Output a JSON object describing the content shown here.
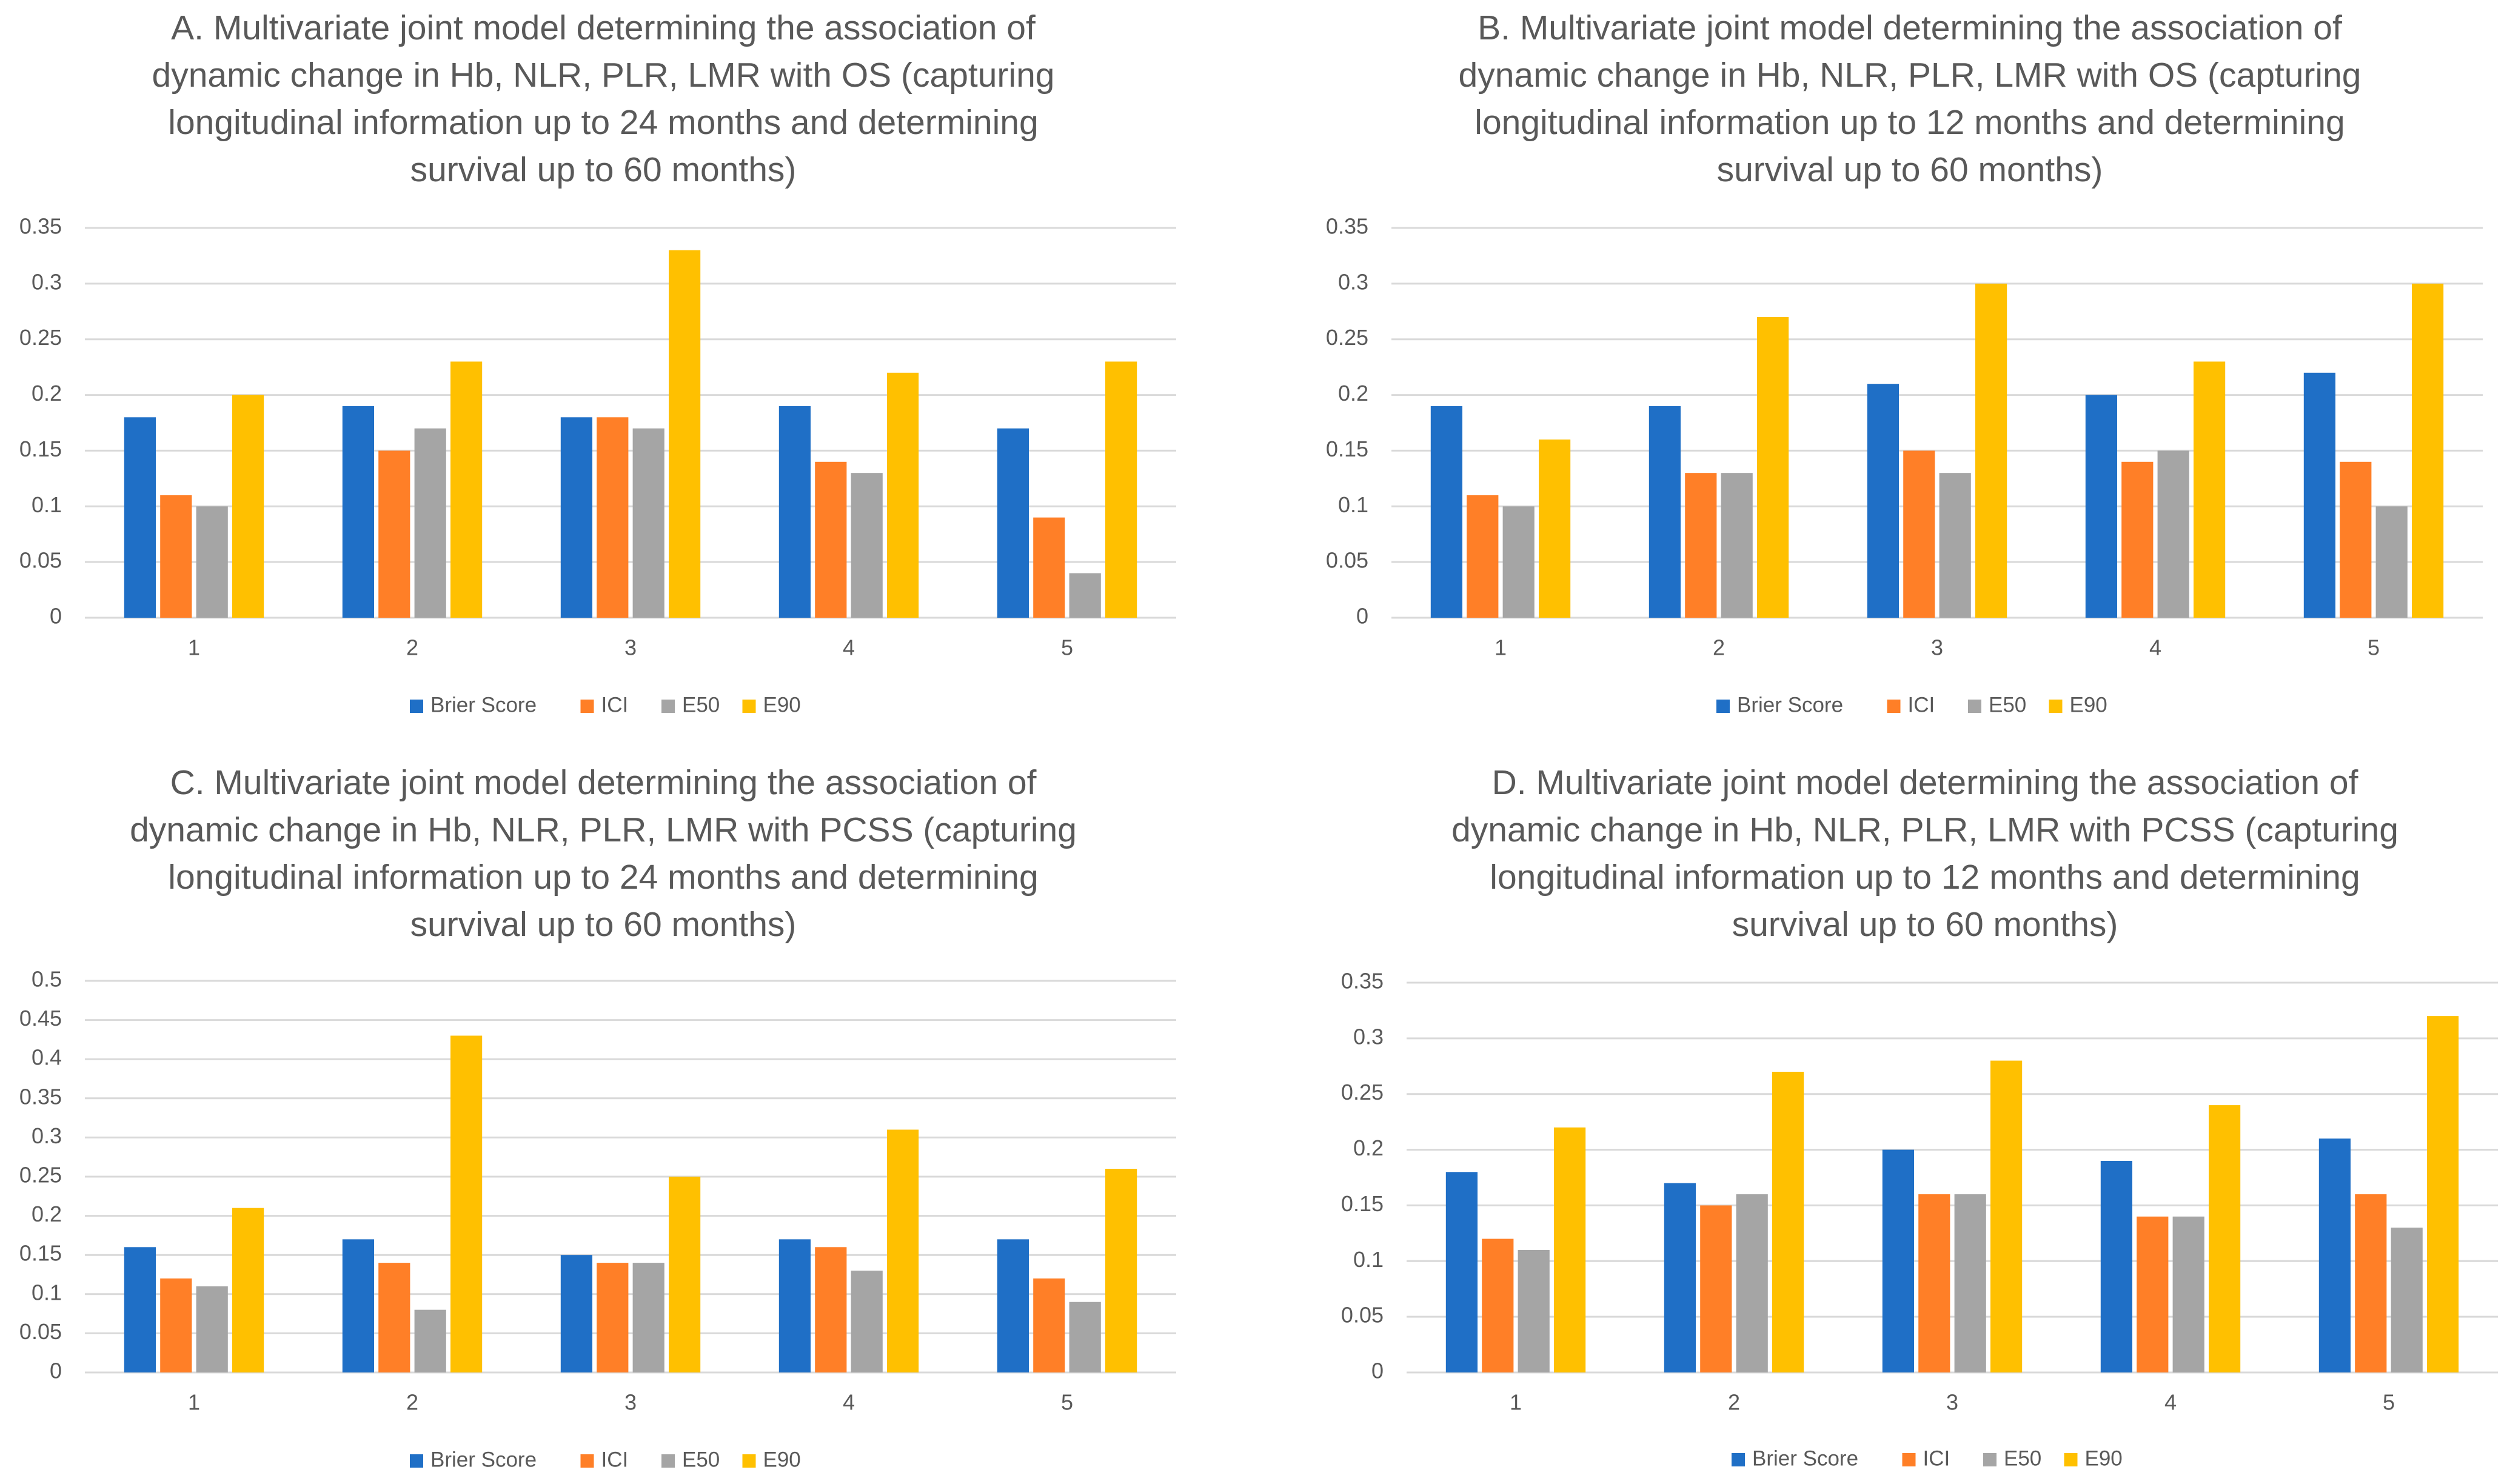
{
  "colors": {
    "Brier Score": "#1f6fc6",
    "ICI": "#ff7f27",
    "E50": "#a5a5a5",
    "E90": "#ffc000"
  },
  "chart_data": [
    {
      "type": "bar",
      "title_lines": [
        "A. Multivariate joint model determining the association of",
        "dynamic change in Hb, NLR, PLR, LMR with OS (capturing",
        "longitudinal information up to 24 months and determining",
        "survival up to 60 months)"
      ],
      "categories": [
        "1",
        "2",
        "3",
        "4",
        "5"
      ],
      "ylim": [
        0,
        0.35
      ],
      "yticks": [
        "0",
        "0.05",
        "0.1",
        "0.15",
        "0.2",
        "0.25",
        "0.3",
        "0.35"
      ],
      "series": [
        {
          "name": "Brier Score",
          "values": [
            0.18,
            0.19,
            0.18,
            0.19,
            0.17
          ]
        },
        {
          "name": "ICI",
          "values": [
            0.11,
            0.15,
            0.18,
            0.14,
            0.09
          ]
        },
        {
          "name": "E50",
          "values": [
            0.1,
            0.17,
            0.17,
            0.13,
            0.04
          ]
        },
        {
          "name": "E90",
          "values": [
            0.2,
            0.23,
            0.33,
            0.22,
            0.23
          ]
        }
      ],
      "legend": "bottom"
    },
    {
      "type": "bar",
      "title_lines": [
        "B. Multivariate joint model determining the association of",
        "dynamic change in Hb, NLR, PLR, LMR with OS (capturing",
        "longitudinal information up to 12 months and determining",
        "survival up to 60 months)"
      ],
      "categories": [
        "1",
        "2",
        "3",
        "4",
        "5"
      ],
      "ylim": [
        0,
        0.35
      ],
      "yticks": [
        "0",
        "0.05",
        "0.1",
        "0.15",
        "0.2",
        "0.25",
        "0.3",
        "0.35"
      ],
      "series": [
        {
          "name": "Brier Score",
          "values": [
            0.19,
            0.19,
            0.21,
            0.2,
            0.22
          ]
        },
        {
          "name": "ICI",
          "values": [
            0.11,
            0.13,
            0.15,
            0.14,
            0.14
          ]
        },
        {
          "name": "E50",
          "values": [
            0.1,
            0.13,
            0.13,
            0.15,
            0.1
          ]
        },
        {
          "name": "E90",
          "values": [
            0.16,
            0.27,
            0.3,
            0.23,
            0.3
          ]
        }
      ],
      "legend": "bottom"
    },
    {
      "type": "bar",
      "title_lines": [
        "C. Multivariate joint model determining the association of",
        "dynamic change in Hb, NLR, PLR, LMR with PCSS (capturing",
        "longitudinal information up to 24 months and determining",
        "survival up to 60 months)"
      ],
      "categories": [
        "1",
        "2",
        "3",
        "4",
        "5"
      ],
      "ylim": [
        0,
        0.5
      ],
      "yticks": [
        "0",
        "0.05",
        "0.1",
        "0.15",
        "0.2",
        "0.25",
        "0.3",
        "0.35",
        "0.4",
        "0.45",
        "0.5"
      ],
      "series": [
        {
          "name": "Brier Score",
          "values": [
            0.16,
            0.17,
            0.15,
            0.17,
            0.17
          ]
        },
        {
          "name": "ICI",
          "values": [
            0.12,
            0.14,
            0.14,
            0.16,
            0.12
          ]
        },
        {
          "name": "E50",
          "values": [
            0.11,
            0.08,
            0.14,
            0.13,
            0.09
          ]
        },
        {
          "name": "E90",
          "values": [
            0.21,
            0.43,
            0.25,
            0.31,
            0.26
          ]
        }
      ],
      "legend": "bottom"
    },
    {
      "type": "bar",
      "title_lines": [
        "D. Multivariate joint model determining the association of",
        "dynamic change in Hb, NLR, PLR, LMR with PCSS (capturing",
        "longitudinal information up to 12 months and determining",
        "survival up to 60 months)"
      ],
      "categories": [
        "1",
        "2",
        "3",
        "4",
        "5"
      ],
      "ylim": [
        0,
        0.35
      ],
      "yticks": [
        "0",
        "0.05",
        "0.1",
        "0.15",
        "0.2",
        "0.25",
        "0.3",
        "0.35"
      ],
      "series": [
        {
          "name": "Brier Score",
          "values": [
            0.18,
            0.17,
            0.2,
            0.19,
            0.21
          ]
        },
        {
          "name": "ICI",
          "values": [
            0.12,
            0.15,
            0.16,
            0.14,
            0.16
          ]
        },
        {
          "name": "E50",
          "values": [
            0.11,
            0.16,
            0.16,
            0.14,
            0.13
          ]
        },
        {
          "name": "E90",
          "values": [
            0.22,
            0.27,
            0.28,
            0.24,
            0.32
          ]
        }
      ],
      "legend": "bottom"
    }
  ]
}
